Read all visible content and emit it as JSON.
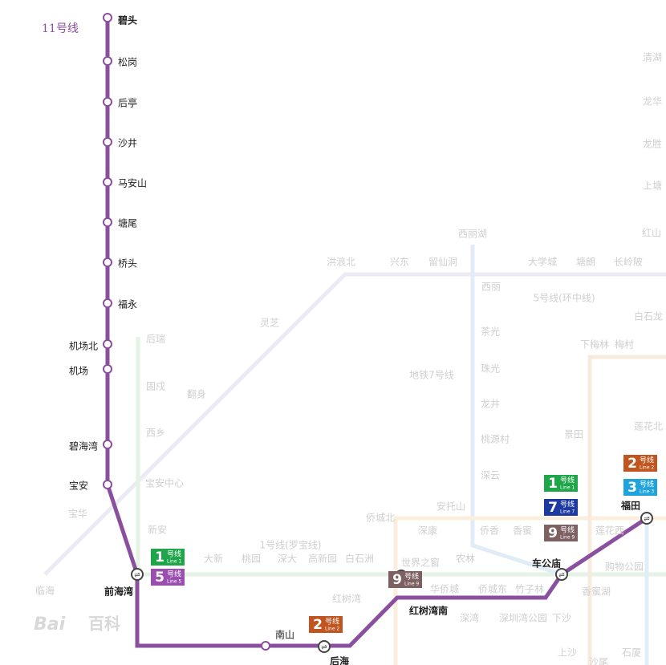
{
  "line_label": "11号线",
  "stations": [
    {
      "name": "碧头",
      "transfer": false
    },
    {
      "name": "松岗",
      "transfer": false
    },
    {
      "name": "后亭",
      "transfer": false
    },
    {
      "name": "沙井",
      "transfer": false
    },
    {
      "name": "马安山",
      "transfer": false
    },
    {
      "name": "塘尾",
      "transfer": false
    },
    {
      "name": "桥头",
      "transfer": false
    },
    {
      "name": "福永",
      "transfer": false
    },
    {
      "name": "机场北",
      "transfer": false
    },
    {
      "name": "机场",
      "transfer": false
    },
    {
      "name": "碧海湾",
      "transfer": false
    },
    {
      "name": "宝安",
      "transfer": false
    },
    {
      "name": "前海湾",
      "transfer": true
    },
    {
      "name": "南山",
      "transfer": false
    },
    {
      "name": "后海",
      "transfer": true
    },
    {
      "name": "红树湾南",
      "transfer": true
    },
    {
      "name": "车公庙",
      "transfer": true
    },
    {
      "name": "福田",
      "transfer": true
    }
  ],
  "badges": [
    {
      "number": "1",
      "unit": "号线",
      "english": "Line 1",
      "color": "#1fa64a"
    },
    {
      "number": "5",
      "unit": "号线",
      "english": "Line 5",
      "color": "#9a4fb0"
    },
    {
      "number": "9",
      "unit": "号线",
      "english": "Line 9",
      "color": "#7d6062"
    },
    {
      "number": "2",
      "unit": "号线",
      "english": "Line 2",
      "color": "#c0551f"
    },
    {
      "number": "1",
      "unit": "号线",
      "english": "Line 1",
      "color": "#1fa64a"
    },
    {
      "number": "7",
      "unit": "号线",
      "english": "Line 7",
      "color": "#1c3aa0"
    },
    {
      "number": "9",
      "unit": "号线",
      "english": "Line 9",
      "color": "#7d6062"
    },
    {
      "number": "2",
      "unit": "号线",
      "english": "Line 2",
      "color": "#c0551f"
    },
    {
      "number": "3",
      "unit": "号线",
      "english": "Line 3",
      "color": "#1ea3dc"
    }
  ],
  "background_labels": [
    "西丽湖",
    "洪浪北",
    "兴东",
    "留仙洞",
    "西丽",
    "大学城",
    "塘朗",
    "长岭陂",
    "5号线(环中线)",
    "茶光",
    "珠光",
    "龙井",
    "桃源村",
    "深云",
    "地铁7号线",
    "灵芝",
    "翻身",
    "后瑞",
    "固戍",
    "西乡",
    "宝安中心",
    "新安",
    "宝华",
    "临海",
    "大新",
    "桃园",
    "深大",
    "高新园",
    "白石洲",
    "1号线(罗宝线)",
    "侨城北",
    "深康",
    "安托山",
    "侨香",
    "香蜜",
    "世界之窗",
    "农林",
    "华侨城",
    "侨城东",
    "竹子林",
    "红树湾",
    "深湾",
    "深圳湾公园",
    "下沙",
    "上沙",
    "沙尾",
    "香蜜湖",
    "购物公园",
    "莲花西",
    "景田",
    "下梅林",
    "梅村",
    "莲花北",
    "白石龙",
    "红山",
    "上塘",
    "龙胜",
    "龙华",
    "清湖",
    "石厦"
  ],
  "watermark": [
    "Bai",
    "百科"
  ]
}
